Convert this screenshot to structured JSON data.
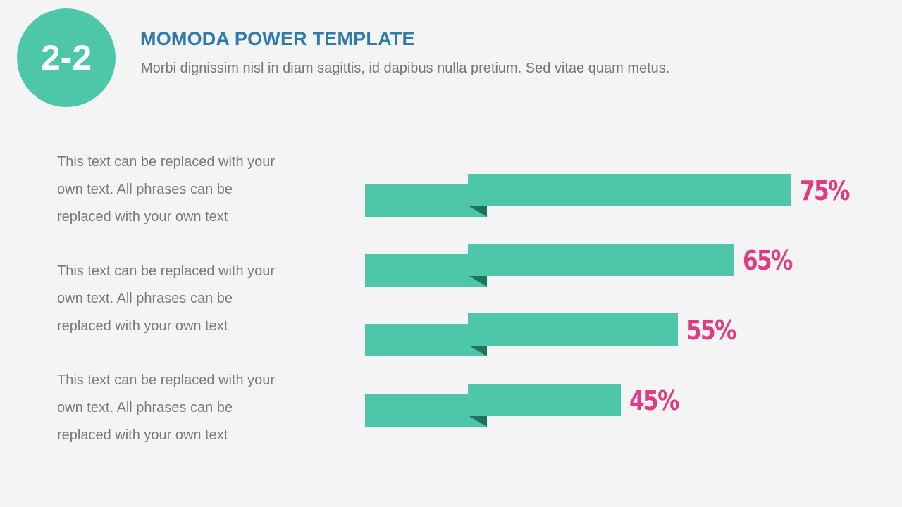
{
  "colors": {
    "accent": "#4ec6a9",
    "fold": "#1e735f",
    "title": "#2e7bab",
    "percent": "#e33a7f",
    "background": "#f4f4f4"
  },
  "badge": {
    "label": "2-2"
  },
  "header": {
    "title": "MOMODA POWER TEMPLATE",
    "subtitle": "Morbi dignissim nisl in diam sagittis, id dapibus nulla pretium. Sed vitae quam metus."
  },
  "items": [
    {
      "lines": [
        "This text can be replaced with your",
        "own text. All phrases can be",
        "replaced with your own text"
      ]
    },
    {
      "lines": [
        "This text can be replaced with your",
        "own text. All phrases can be",
        "replaced with your own text"
      ]
    },
    {
      "lines": [
        "This text can be replaced with your",
        "own text. All phrases can be",
        "replaced with your own text"
      ]
    }
  ],
  "bars": [
    {
      "label": "75%",
      "value": 75
    },
    {
      "label": "65%",
      "value": 65
    },
    {
      "label": "55%",
      "value": 55
    },
    {
      "label": "45%",
      "value": 45
    }
  ]
}
